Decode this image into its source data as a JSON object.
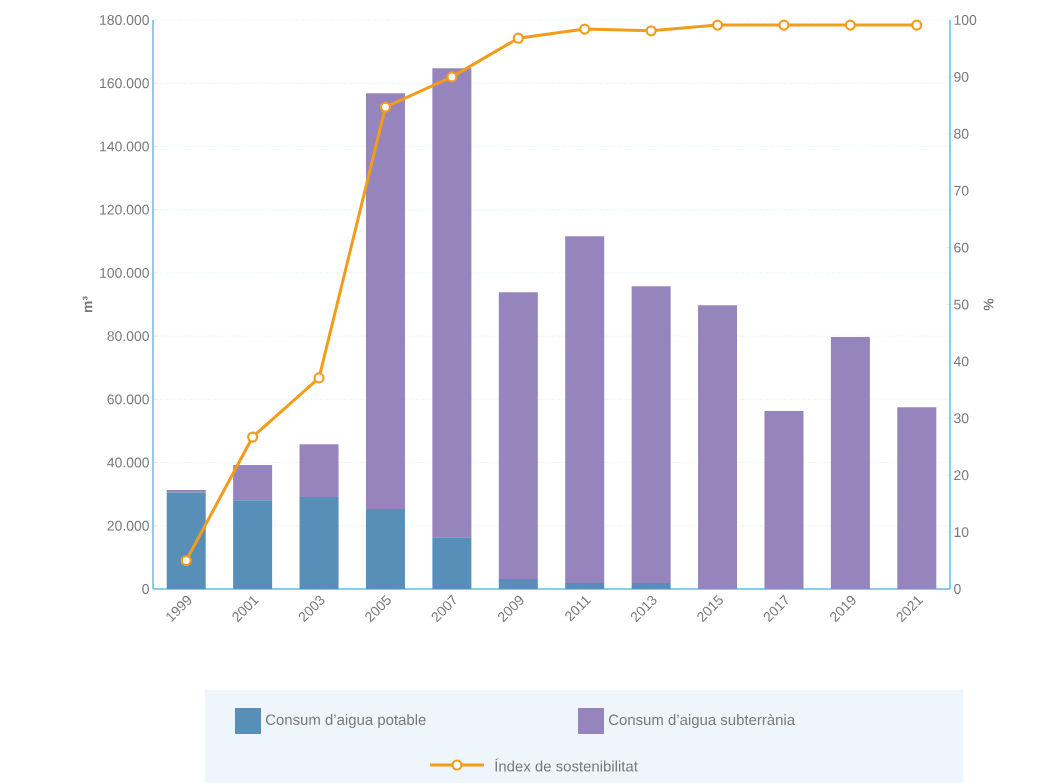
{
  "chart_data": {
    "type": "bar",
    "stacked": true,
    "categories": [
      "1999",
      "2001",
      "2003",
      "2005",
      "2007",
      "2009",
      "2011",
      "2013",
      "2015",
      "2017",
      "2019",
      "2021"
    ],
    "series": [
      {
        "name": "Consum d’aigua potable",
        "color": "#588fb8",
        "values": [
          30500,
          28100,
          29100,
          25300,
          16400,
          3200,
          1900,
          1900,
          null,
          null,
          null,
          null
        ]
      },
      {
        "name": "Consum d’aigua subterrània",
        "color": "#9684bc",
        "values": [
          800,
          11100,
          16700,
          131500,
          148300,
          90700,
          109700,
          93900,
          89800,
          56300,
          79700,
          57500
        ]
      },
      {
        "name": "Índex de sostenibilitat",
        "type": "line",
        "axis": "y2",
        "color": "#f39c19",
        "marker": "circle",
        "values": [
          5,
          26.7,
          37.1,
          84.7,
          90,
          96.8,
          98.4,
          98.1,
          99.1,
          99.1,
          99.1,
          99.1
        ]
      }
    ],
    "ylabel": "m³",
    "y2label": "%",
    "ylim": [
      0,
      180000
    ],
    "yticks": [
      {
        "value": 0,
        "label": "0"
      },
      {
        "value": 20000,
        "label": "20.000"
      },
      {
        "value": 40000,
        "label": "40.000"
      },
      {
        "value": 60000,
        "label": "60.000"
      },
      {
        "value": 80000,
        "label": "80.000"
      },
      {
        "value": 100000,
        "label": "100.000"
      },
      {
        "value": 120000,
        "label": "120.000"
      },
      {
        "value": 140000,
        "label": "140.000"
      },
      {
        "value": 160000,
        "label": "160.000"
      },
      {
        "value": 180000,
        "label": "180.000"
      }
    ],
    "y2lim": [
      0,
      100
    ],
    "y2ticks": [
      0,
      10,
      20,
      30,
      40,
      50,
      60,
      70,
      80,
      90,
      100
    ],
    "grid": "y",
    "legend": "bottom"
  }
}
